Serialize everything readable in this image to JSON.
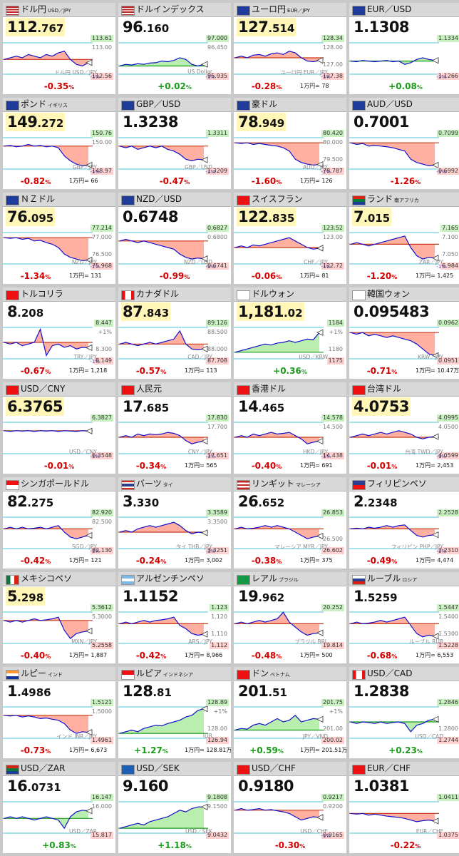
{
  "colors": {
    "pos": "#1a9c1a",
    "neg": "#d40000",
    "area_up": "#b9eeae",
    "area_down": "#ffb0a0",
    "line": "#1010cc",
    "base": "#c8a000",
    "ref": "#4ec3d8"
  },
  "tiles": [
    {
      "name": "ドル円",
      "sub": "USD／JPY",
      "flag": "us",
      "val_main": "112",
      "val_sub": ".767",
      "hl": true,
      "hi": "113.61",
      "hi2": "113.00",
      "lo": "112.56",
      "mid": "",
      "pair": "ドル円 USD／JPY",
      "pm": "-1%",
      "chg": "-0.35",
      "yen": "",
      "shape": [
        0.55,
        0.5,
        0.45,
        0.5,
        0.4,
        0.45,
        0.5,
        0.4,
        0.45,
        0.35,
        0.3,
        0.55,
        0.7,
        0.75,
        0.65
      ]
    },
    {
      "name": "ドルインデックス",
      "sub": "",
      "flag": "us",
      "val_main": "96",
      "val_sub": ".160",
      "hl": false,
      "hi": "97.000",
      "hi2": "96.450",
      "lo": "95.935",
      "mid": "",
      "pair": "US Dollar",
      "pm": "-1%",
      "chg": "+0.02",
      "yen": "",
      "shape": [
        0.75,
        0.7,
        0.72,
        0.68,
        0.7,
        0.66,
        0.65,
        0.6,
        0.62,
        0.58,
        0.5,
        0.55,
        0.7,
        0.75,
        0.7
      ]
    },
    {
      "name": "ユーロ円",
      "sub": "EUR／JPY",
      "flag": "eu",
      "val_main": "127",
      "val_sub": ".514",
      "hl": true,
      "hi": "128.34",
      "hi2": "128.00",
      "lo": "127.38",
      "mid": "127.00",
      "pair": "ユーロ円 EUR／JPY",
      "pm": "-1%",
      "chg": "-0.28",
      "yen": "1万円= 78",
      "shape": [
        0.5,
        0.45,
        0.5,
        0.42,
        0.4,
        0.45,
        0.38,
        0.35,
        0.4,
        0.3,
        0.35,
        0.5,
        0.6,
        0.62,
        0.58
      ]
    },
    {
      "name": "EUR／USD",
      "sub": "",
      "flag": "eu",
      "val_main": "1.1308",
      "val_sub": "",
      "hl": false,
      "hi": "1.1334",
      "hi2": "",
      "lo": "1.1266",
      "mid": "",
      "pair": "",
      "pm": "-1%",
      "chg": "+0.08",
      "yen": "",
      "shape": [
        0.6,
        0.62,
        0.58,
        0.6,
        0.62,
        0.6,
        0.58,
        0.62,
        0.6,
        0.7,
        0.65,
        0.55,
        0.5,
        0.55,
        0.58
      ]
    },
    {
      "name": "ポンド",
      "sub": "イギリス",
      "flag": "uk",
      "val_main": "149",
      "val_sub": ".272",
      "hl": true,
      "hi": "150.76",
      "hi2": "150.00",
      "lo": "148.97",
      "mid": "",
      "pair": "GBP／JPY",
      "pm": "-1%",
      "chg": "-0.82",
      "yen": "1万円= 66",
      "shape": [
        0.3,
        0.28,
        0.32,
        0.3,
        0.25,
        0.3,
        0.28,
        0.32,
        0.3,
        0.35,
        0.6,
        0.75,
        0.85,
        0.9,
        0.88
      ]
    },
    {
      "name": "GBP／USD",
      "sub": "",
      "flag": "uk",
      "val_main": "1.3238",
      "val_sub": "",
      "hl": false,
      "hi": "1.3311",
      "hi2": "",
      "lo": "1.3209",
      "mid": "",
      "pair": "GBP／USD",
      "pm": "-1%",
      "chg": "-0.47",
      "yen": "",
      "shape": [
        0.3,
        0.35,
        0.3,
        0.4,
        0.35,
        0.3,
        0.35,
        0.3,
        0.4,
        0.45,
        0.55,
        0.7,
        0.75,
        0.7,
        0.72
      ]
    },
    {
      "name": "豪ドル",
      "sub": "",
      "flag": "au",
      "val_main": "78",
      "val_sub": ".949",
      "hl": true,
      "hi": "80.420",
      "hi2": "80.000",
      "lo": "78.787",
      "mid": "79.500",
      "pair": "AUD／JPY",
      "pm": "-1%",
      "chg": "-1.60",
      "yen": "1万円= 126",
      "shape": [
        0.2,
        0.22,
        0.2,
        0.25,
        0.22,
        0.25,
        0.28,
        0.3,
        0.35,
        0.45,
        0.7,
        0.8,
        0.85,
        0.88,
        0.86
      ]
    },
    {
      "name": "AUD／USD",
      "sub": "",
      "flag": "au",
      "val_main": "0.7001",
      "val_sub": "",
      "hl": false,
      "hi": "0.7099",
      "hi2": "",
      "lo": "0.6992",
      "mid": "",
      "pair": "",
      "pm": "-1%",
      "chg": "-1.26",
      "yen": "",
      "shape": [
        0.2,
        0.25,
        0.22,
        0.3,
        0.28,
        0.3,
        0.32,
        0.35,
        0.4,
        0.45,
        0.7,
        0.8,
        0.85,
        0.9,
        0.88
      ]
    },
    {
      "name": "ＮＺドル",
      "sub": "",
      "flag": "nz",
      "val_main": "76",
      "val_sub": ".095",
      "hl": true,
      "hi": "77.214",
      "hi2": "77.000",
      "lo": "75.968",
      "mid": "76.500",
      "pair": "NZD／JPY",
      "pm": "-1%",
      "chg": "-1.34",
      "yen": "1万円= 131",
      "shape": [
        0.2,
        0.22,
        0.2,
        0.25,
        0.22,
        0.3,
        0.28,
        0.35,
        0.4,
        0.5,
        0.7,
        0.8,
        0.85,
        0.9,
        0.88
      ]
    },
    {
      "name": "NZD／USD",
      "sub": "",
      "flag": "nz",
      "val_main": "0.6748",
      "val_sub": "",
      "hl": false,
      "hi": "0.6827",
      "hi2": "0.6800",
      "lo": "0.6741",
      "mid": "",
      "pair": "NZD／USD",
      "pm": "-1%",
      "chg": "-0.99",
      "yen": "",
      "shape": [
        0.3,
        0.25,
        0.3,
        0.35,
        0.3,
        0.35,
        0.4,
        0.45,
        0.5,
        0.55,
        0.7,
        0.8,
        0.85,
        0.82,
        0.84
      ]
    },
    {
      "name": "スイスフラン",
      "sub": "",
      "flag": "ch",
      "val_main": "122",
      "val_sub": ".835",
      "hl": true,
      "hi": "123.52",
      "hi2": "123.00",
      "lo": "122.72",
      "mid": "",
      "pair": "CHF／JPY",
      "pm": "-1%",
      "chg": "-0.06",
      "yen": "1万円= 81",
      "shape": [
        0.5,
        0.45,
        0.5,
        0.42,
        0.45,
        0.4,
        0.35,
        0.3,
        0.25,
        0.2,
        0.3,
        0.4,
        0.5,
        0.55,
        0.52
      ]
    },
    {
      "name": "ランド",
      "sub": "南アフリカ",
      "flag": "za",
      "val_main": "7",
      "val_sub": ".015",
      "hl": true,
      "hi": "7.165",
      "hi2": "7.100",
      "lo": "6.984",
      "mid": "7.050",
      "pair": "ZAR／JPY",
      "pm": "-1%",
      "chg": "-1.20",
      "yen": "1万円= 1,425",
      "shape": [
        0.4,
        0.35,
        0.4,
        0.45,
        0.4,
        0.35,
        0.3,
        0.25,
        0.2,
        0.15,
        0.5,
        0.75,
        0.85,
        0.8,
        0.82
      ]
    },
    {
      "name": "トルコリラ",
      "sub": "",
      "flag": "tr",
      "val_main": "8",
      "val_sub": ".208",
      "hl": false,
      "hi": "8.447",
      "hi2": "+1%",
      "lo": "8.149",
      "mid": "8.300",
      "pair": "TRY／JPY",
      "pm": "-1%",
      "chg": "-0.67",
      "yen": "1万円= 1,218",
      "shape": [
        0.5,
        0.55,
        0.5,
        0.6,
        0.55,
        0.5,
        0.1,
        0.9,
        0.6,
        0.55,
        0.65,
        0.6,
        0.7,
        0.65,
        0.66
      ]
    },
    {
      "name": "カナダドル",
      "sub": "",
      "flag": "ca",
      "val_main": "87",
      "val_sub": ".843",
      "hl": true,
      "hi": "89.126",
      "hi2": "88.500",
      "lo": "87.708",
      "mid": "88.000",
      "pair": "CAD／JPY",
      "pm": "",
      "chg": "-0.57",
      "yen": "1万円= 113",
      "shape": [
        0.55,
        0.5,
        0.55,
        0.6,
        0.55,
        0.5,
        0.55,
        0.5,
        0.45,
        0.4,
        0.15,
        0.55,
        0.7,
        0.72,
        0.7
      ]
    },
    {
      "name": "ドルウォン",
      "sub": "",
      "flag": "kr",
      "val_main": "1,181",
      "val_sub": ".02",
      "hl": true,
      "hi": "1184",
      "hi2": "+1%",
      "lo": "1175",
      "mid": "1180",
      "pair": "USD／KRW",
      "pm": "",
      "chg": "+0.36",
      "yen": "",
      "shape": [
        0.8,
        0.75,
        0.7,
        0.65,
        0.6,
        0.55,
        0.58,
        0.52,
        0.5,
        0.45,
        0.5,
        0.45,
        0.4,
        0.42,
        0.2
      ]
    },
    {
      "name": "韓国ウォン",
      "sub": "",
      "flag": "kr",
      "val_main": "0.095483",
      "val_sub": "",
      "hl": false,
      "hi": "0.0962",
      "hi2": "",
      "lo": "0.0951",
      "mid": "",
      "pair": "KRW／JPY",
      "pm": "",
      "chg": "-0.71",
      "yen": "1万円= 10.47万",
      "shape": [
        0.2,
        0.25,
        0.2,
        0.3,
        0.25,
        0.3,
        0.35,
        0.3,
        0.35,
        0.4,
        0.45,
        0.55,
        0.7,
        0.85,
        0.9
      ]
    },
    {
      "name": "USD／CNY",
      "sub": "",
      "flag": "cn",
      "val_main": "6.3765",
      "val_sub": "",
      "hl": true,
      "hi": "6.3827",
      "hi2": "",
      "lo": "6.3548",
      "mid": "",
      "pair": "USD／CNY",
      "pm": "-1%",
      "chg": "-0.01",
      "yen": "",
      "shape": [
        0.3,
        0.32,
        0.3,
        0.31,
        0.3,
        0.32,
        0.3,
        0.31,
        0.3,
        0.32,
        0.3,
        0.31,
        0.32,
        0.3,
        0.31
      ]
    },
    {
      "name": "人民元",
      "sub": "",
      "flag": "cn",
      "val_main": "17",
      "val_sub": ".685",
      "hl": false,
      "hi": "17.830",
      "hi2": "17.700",
      "lo": "17.651",
      "mid": "",
      "pair": "CNY／JPY",
      "pm": "-1%",
      "chg": "-0.34",
      "yen": "1万円= 565",
      "shape": [
        0.5,
        0.45,
        0.5,
        0.4,
        0.45,
        0.4,
        0.42,
        0.4,
        0.35,
        0.38,
        0.45,
        0.6,
        0.7,
        0.65,
        0.62
      ]
    },
    {
      "name": "香港ドル",
      "sub": "",
      "flag": "hk",
      "val_main": "14",
      "val_sub": ".465",
      "hl": false,
      "hi": "14.578",
      "hi2": "14.500",
      "lo": "14.438",
      "mid": "",
      "pair": "HKD／JPY",
      "pm": "-1%",
      "chg": "-0.40",
      "yen": "1万円= 691",
      "shape": [
        0.5,
        0.45,
        0.5,
        0.4,
        0.45,
        0.4,
        0.35,
        0.4,
        0.38,
        0.35,
        0.45,
        0.55,
        0.7,
        0.65,
        0.62
      ]
    },
    {
      "name": "台湾ドル",
      "sub": "",
      "flag": "tw",
      "val_main": "4.0753",
      "val_sub": "",
      "hl": true,
      "hi": "4.0995",
      "hi2": "4.0500",
      "lo": "4.0599",
      "mid": "",
      "pair": "台湾 TWD／JPY",
      "pm": "-1%",
      "chg": "-0.01",
      "yen": "1万円= 2,453",
      "shape": [
        0.5,
        0.45,
        0.4,
        0.45,
        0.4,
        0.35,
        0.4,
        0.35,
        0.3,
        0.35,
        0.4,
        0.5,
        0.55,
        0.5,
        0.48
      ]
    },
    {
      "name": "シンガポールドル",
      "sub": "",
      "flag": "sg",
      "val_main": "82",
      "val_sub": ".275",
      "hl": false,
      "hi": "82.920",
      "hi2": "82.500",
      "lo": "82.130",
      "mid": "",
      "pair": "SGD／JPY",
      "pm": "-1%",
      "chg": "-0.42",
      "yen": "1万円= 121",
      "shape": [
        0.4,
        0.35,
        0.4,
        0.35,
        0.4,
        0.38,
        0.35,
        0.4,
        0.35,
        0.3,
        0.5,
        0.65,
        0.7,
        0.65,
        0.6
      ]
    },
    {
      "name": "バーツ",
      "sub": "タイ",
      "flag": "th",
      "val_main": "3",
      "val_sub": ".330",
      "hl": false,
      "hi": "3.3589",
      "hi2": "3.3500",
      "lo": "3.3251",
      "mid": "",
      "pair": "タイ THB／JPY",
      "pm": "-1%",
      "chg": "-0.24",
      "yen": "1万円= 3,002",
      "shape": [
        0.5,
        0.45,
        0.5,
        0.4,
        0.35,
        0.3,
        0.35,
        0.3,
        0.25,
        0.2,
        0.3,
        0.45,
        0.55,
        0.5,
        0.52
      ]
    },
    {
      "name": "リンギット",
      "sub": "マレーシア",
      "flag": "my",
      "val_main": "26",
      "val_sub": ".652",
      "hl": false,
      "hi": "26.853",
      "hi2": "",
      "lo": "26.602",
      "mid": "26.500",
      "pair": "マレーシア MYR／JPY",
      "pm": "",
      "chg": "-0.38",
      "yen": "1万円= 375",
      "shape": [
        0.4,
        0.35,
        0.4,
        0.38,
        0.35,
        0.3,
        0.35,
        0.3,
        0.35,
        0.4,
        0.5,
        0.6,
        0.7,
        0.65,
        0.62
      ]
    },
    {
      "name": "フィリピンペソ",
      "sub": "",
      "flag": "ph",
      "val_main": "2",
      "val_sub": ".2348",
      "hl": false,
      "hi": "2.2528",
      "hi2": "",
      "lo": "2.2310",
      "mid": "",
      "pair": "フィリピン PHP／JPY",
      "pm": "-1%",
      "chg": "-0.49",
      "yen": "1万円= 4,474",
      "shape": [
        0.4,
        0.38,
        0.4,
        0.35,
        0.38,
        0.35,
        0.3,
        0.35,
        0.3,
        0.28,
        0.45,
        0.6,
        0.65,
        0.6,
        0.58
      ]
    },
    {
      "name": "メキシコペソ",
      "sub": "",
      "flag": "mx",
      "val_main": "5",
      "val_sub": ".298",
      "hl": true,
      "hi": "5.3612",
      "hi2": "5.3000",
      "lo": "5.2558",
      "mid": "",
      "pair": "MXN／JPY",
      "pm": "",
      "chg": "-0.40",
      "yen": "1万円= 1,887",
      "shape": [
        0.3,
        0.35,
        0.3,
        0.35,
        0.3,
        0.25,
        0.3,
        0.28,
        0.25,
        0.2,
        0.6,
        0.85,
        0.7,
        0.65,
        0.62
      ]
    },
    {
      "name": "アルゼンチンペソ",
      "sub": "",
      "flag": "ar",
      "val_main": "1.1152",
      "val_sub": "",
      "hl": false,
      "hi": "1.123",
      "hi2": "1.120",
      "lo": "1.112",
      "mid": "1.110",
      "pair": "ARS／JPY",
      "pm": "",
      "chg": "-0.42",
      "yen": "1万円= 8,966",
      "shape": [
        0.4,
        0.35,
        0.4,
        0.35,
        0.3,
        0.35,
        0.3,
        0.28,
        0.25,
        0.2,
        0.45,
        0.55,
        0.7,
        0.75,
        0.72
      ]
    },
    {
      "name": "レアル",
      "sub": "ブラジル",
      "flag": "br",
      "val_main": "19",
      "val_sub": ".962",
      "hl": false,
      "hi": "20.252",
      "hi2": "",
      "lo": "19.814",
      "mid": "",
      "pair": "ブラジル BRL",
      "pm": "",
      "chg": "-0.48",
      "yen": "1万円= 500",
      "shape": [
        0.4,
        0.35,
        0.4,
        0.35,
        0.3,
        0.35,
        0.3,
        0.25,
        0.05,
        0.35,
        0.5,
        0.65,
        0.75,
        0.7,
        0.68
      ]
    },
    {
      "name": "ルーブル",
      "sub": "ロシア",
      "flag": "ru",
      "val_main": "1",
      "val_sub": ".5259",
      "hl": false,
      "hi": "1.5447",
      "hi2": "1.5400",
      "lo": "1.5228",
      "mid": "1.5300",
      "pair": "ルーブル RUB",
      "pm": "",
      "chg": "-0.68",
      "yen": "1万円= 6,553",
      "shape": [
        0.4,
        0.35,
        0.4,
        0.38,
        0.35,
        0.3,
        0.35,
        0.3,
        0.25,
        0.2,
        0.45,
        0.7,
        0.8,
        0.75,
        0.78
      ]
    },
    {
      "name": "ルピー",
      "sub": "インド",
      "flag": "in",
      "val_main": "1",
      "val_sub": ".4986",
      "hl": false,
      "hi": "1.5121",
      "hi2": "1.5000",
      "lo": "1.4961",
      "mid": "",
      "pair": "インド INR／JPY",
      "pm": "",
      "chg": "-0.73",
      "yen": "1万円= 6,673",
      "shape": [
        0.3,
        0.32,
        0.3,
        0.35,
        0.32,
        0.35,
        0.4,
        0.38,
        0.42,
        0.45,
        0.55,
        0.75,
        0.85,
        0.8,
        0.82
      ]
    },
    {
      "name": "ルピア",
      "sub": "インドネシア",
      "flag": "id",
      "val_main": "128",
      "val_sub": ".81",
      "hl": false,
      "hi": "128.89",
      "hi2": "+1%",
      "lo": "126.94",
      "mid": "128.00",
      "pair": "IDR",
      "pm": "",
      "chg": "+1.27",
      "yen": "1万円= 128.81万",
      "shape": [
        0.85,
        0.8,
        0.75,
        0.8,
        0.7,
        0.65,
        0.6,
        0.62,
        0.55,
        0.5,
        0.45,
        0.35,
        0.3,
        0.15,
        0.1
      ]
    },
    {
      "name": "ドン",
      "sub": "ベトナム",
      "flag": "vn",
      "val_main": "201",
      "val_sub": ".51",
      "hl": false,
      "hi": "201.75",
      "hi2": "+1%",
      "lo": "200.02",
      "mid": "201.00",
      "pair": "JPY／VND",
      "pm": "",
      "chg": "+0.59",
      "yen": "1万円= 201.51万",
      "shape": [
        0.75,
        0.7,
        0.72,
        0.6,
        0.55,
        0.6,
        0.5,
        0.4,
        0.5,
        0.45,
        0.3,
        0.5,
        0.45,
        0.4,
        0.42
      ]
    },
    {
      "name": "USD／CAD",
      "sub": "",
      "flag": "ca",
      "val_main": "1.2838",
      "val_sub": "",
      "hl": false,
      "hi": "1.2846",
      "hi2": "",
      "lo": "1.2744",
      "mid": "1.2800",
      "pair": "USD／CAD",
      "pm": "",
      "chg": "+0.23",
      "yen": "",
      "shape": [
        0.5,
        0.55,
        0.5,
        0.52,
        0.55,
        0.5,
        0.55,
        0.52,
        0.5,
        0.55,
        0.8,
        0.6,
        0.55,
        0.45,
        0.42
      ]
    },
    {
      "name": "USD／ZAR",
      "sub": "",
      "flag": "za",
      "val_main": "16",
      "val_sub": ".0731",
      "hl": false,
      "hi": "16.147",
      "hi2": "16.000",
      "lo": "15.817",
      "mid": "",
      "pair": "USD／ZAR",
      "pm": "",
      "chg": "+0.83",
      "yen": "",
      "shape": [
        0.55,
        0.5,
        0.55,
        0.5,
        0.55,
        0.6,
        0.55,
        0.5,
        0.55,
        0.6,
        0.85,
        0.5,
        0.35,
        0.3,
        0.32
      ]
    },
    {
      "name": "USD／SEK",
      "sub": "",
      "flag": "se",
      "val_main": "9.160",
      "val_sub": "",
      "hl": false,
      "hi": "9.1808",
      "hi2": "9.1500",
      "lo": "9.0432",
      "mid": "",
      "pair": "USD／SEK",
      "pm": "",
      "chg": "+1.18",
      "yen": "",
      "shape": [
        0.85,
        0.8,
        0.75,
        0.7,
        0.75,
        0.65,
        0.6,
        0.55,
        0.5,
        0.4,
        0.3,
        0.35,
        0.25,
        0.2,
        0.2
      ]
    },
    {
      "name": "USD／CHF",
      "sub": "",
      "flag": "ch",
      "val_main": "0.9180",
      "val_sub": "",
      "hl": false,
      "hi": "0.9217",
      "hi2": "0.9200",
      "lo": "0.9165",
      "mid": "",
      "pair": "USD／CHF",
      "pm": "-1%",
      "chg": "-0.30",
      "yen": "",
      "shape": [
        0.3,
        0.25,
        0.3,
        0.28,
        0.25,
        0.3,
        0.28,
        0.32,
        0.35,
        0.4,
        0.5,
        0.6,
        0.55,
        0.5,
        0.52
      ]
    },
    {
      "name": "EUR／CHF",
      "sub": "",
      "flag": "ch",
      "val_main": "1.0381",
      "val_sub": "",
      "hl": false,
      "hi": "1.0411",
      "hi2": "",
      "lo": "1.0375",
      "mid": "",
      "pair": "EUR／CHF",
      "pm": "",
      "chg": "-0.22",
      "yen": "",
      "shape": [
        0.4,
        0.42,
        0.4,
        0.45,
        0.42,
        0.45,
        0.48,
        0.5,
        0.52,
        0.55,
        0.6,
        0.65,
        0.62,
        0.6,
        0.63
      ]
    }
  ]
}
